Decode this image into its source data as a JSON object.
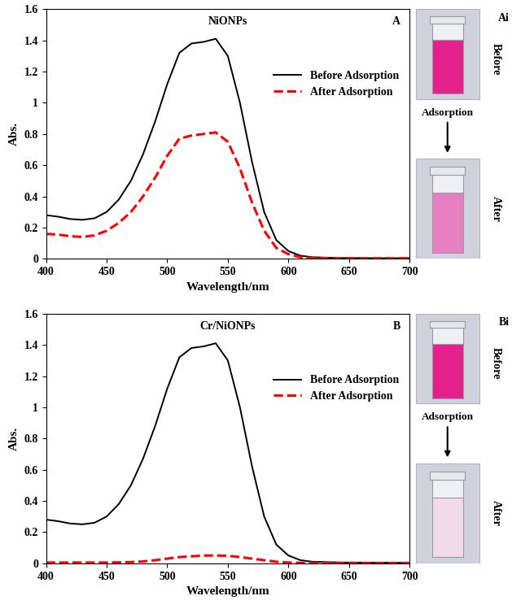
{
  "chart_data": [
    {
      "type": "line",
      "title": "NiONPs",
      "annotations": [
        "A"
      ],
      "x_label": "Wavelength/nm",
      "y_label": "Abs.",
      "xlim": [
        400,
        700
      ],
      "xticks": [
        400,
        450,
        500,
        550,
        600,
        650,
        700
      ],
      "ylim": [
        0,
        1.6
      ],
      "yticks": [
        0,
        0.2,
        0.4,
        0.6,
        0.8,
        1,
        1.2,
        1.4,
        1.6
      ],
      "legend": "center right",
      "x": [
        400,
        410,
        420,
        430,
        440,
        450,
        460,
        470,
        480,
        490,
        500,
        510,
        520,
        530,
        540,
        550,
        560,
        570,
        580,
        590,
        600,
        610,
        620,
        630,
        640,
        650,
        660,
        670,
        680,
        690,
        700
      ],
      "series": [
        {
          "name": "Before Adsorption",
          "color": "#000000",
          "line_style": "solid",
          "values": [
            0.28,
            0.27,
            0.255,
            0.25,
            0.26,
            0.3,
            0.38,
            0.5,
            0.67,
            0.88,
            1.12,
            1.32,
            1.38,
            1.39,
            1.41,
            1.3,
            1.0,
            0.62,
            0.3,
            0.12,
            0.05,
            0.02,
            0.01,
            0.008,
            0.006,
            0.005,
            0.005,
            0.004,
            0.004,
            0.004,
            0.004
          ]
        },
        {
          "name": "After Adsorption",
          "color": "#ff0000",
          "line_style": "dashed",
          "values": [
            0.16,
            0.155,
            0.145,
            0.14,
            0.15,
            0.18,
            0.23,
            0.3,
            0.4,
            0.52,
            0.66,
            0.77,
            0.79,
            0.8,
            0.81,
            0.75,
            0.58,
            0.36,
            0.18,
            0.07,
            0.03,
            0.01,
            0.005,
            0.004,
            0.003,
            0.003,
            0.003,
            0.003,
            0.003,
            0.003,
            0.003
          ]
        }
      ]
    },
    {
      "type": "line",
      "title": "Cr/NiONPs",
      "annotations": [
        "B"
      ],
      "x_label": "Wavelength/nm",
      "y_label": "Abs.",
      "xlim": [
        400,
        700
      ],
      "xticks": [
        400,
        450,
        500,
        550,
        600,
        650,
        700
      ],
      "ylim": [
        0,
        1.6
      ],
      "yticks": [
        0,
        0.2,
        0.4,
        0.6,
        0.8,
        1,
        1.2,
        1.4,
        1.6
      ],
      "legend": "center right",
      "x": [
        400,
        410,
        420,
        430,
        440,
        450,
        460,
        470,
        480,
        490,
        500,
        510,
        520,
        530,
        540,
        550,
        560,
        570,
        580,
        590,
        600,
        610,
        620,
        630,
        640,
        650,
        660,
        670,
        680,
        690,
        700
      ],
      "series": [
        {
          "name": "Before Adsorption",
          "color": "#000000",
          "line_style": "solid",
          "values": [
            0.28,
            0.27,
            0.255,
            0.25,
            0.26,
            0.3,
            0.38,
            0.5,
            0.67,
            0.88,
            1.12,
            1.32,
            1.38,
            1.39,
            1.41,
            1.3,
            1.0,
            0.62,
            0.3,
            0.12,
            0.05,
            0.02,
            0.01,
            0.008,
            0.006,
            0.005,
            0.005,
            0.004,
            0.004,
            0.004,
            0.004
          ]
        },
        {
          "name": "After Adsorption",
          "color": "#ff0000",
          "line_style": "dashed",
          "values": [
            0.005,
            0.005,
            0.005,
            0.005,
            0.005,
            0.005,
            0.006,
            0.008,
            0.012,
            0.02,
            0.03,
            0.04,
            0.045,
            0.05,
            0.05,
            0.048,
            0.04,
            0.03,
            0.02,
            0.01,
            0.005,
            0.003,
            0.002,
            0.002,
            0.002,
            0.002,
            0.002,
            0.002,
            0.002,
            0.002,
            0.002
          ]
        }
      ]
    }
  ],
  "images": [
    {
      "label": "Ai",
      "before": "Before",
      "step": "Adsorption",
      "after": "After"
    },
    {
      "label": "Bi",
      "before": "Before",
      "step": "Adsorption",
      "after": "After"
    }
  ]
}
